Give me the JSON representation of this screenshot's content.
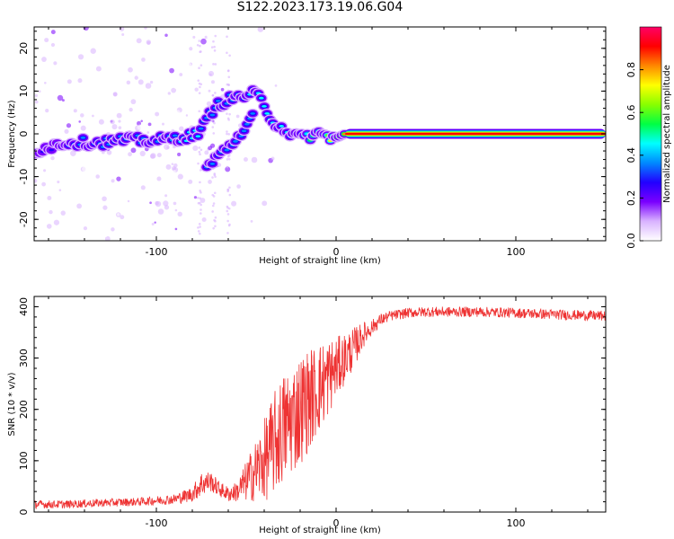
{
  "title": "S122.2023.173.19.06.G04",
  "chart_data": [
    {
      "type": "heatmap",
      "xlabel": "Height of straight line (km)",
      "ylabel": "Frequency (Hz)",
      "xlim": [
        -168,
        150
      ],
      "ylim": [
        -25,
        25
      ],
      "xticks": [
        -100,
        0,
        100
      ],
      "yticks": [
        -20,
        -10,
        0,
        10,
        20
      ],
      "colorbar": {
        "label": "Normalized spectral amplitude",
        "range": [
          0,
          1
        ],
        "ticks": [
          0.0,
          0.2,
          0.4,
          0.6,
          0.8
        ],
        "colors": [
          "#ffffff",
          "#d9b3ff",
          "#7a00ff",
          "#2200ff",
          "#0088ff",
          "#00ffff",
          "#00ff44",
          "#88ff00",
          "#ffff00",
          "#ff8800",
          "#ff0000",
          "#ff0066"
        ]
      },
      "ridge": {
        "name": "main ridge",
        "x": [
          -168,
          -160,
          -150,
          -140,
          -130,
          -120,
          -110,
          -100,
          -90,
          -80,
          -75,
          -72,
          -70,
          -65,
          -60,
          -55,
          -50,
          -45,
          -42,
          -40,
          -38,
          -35,
          -30,
          -25,
          -20,
          -15,
          -10,
          -5,
          0,
          5,
          10,
          50,
          100,
          150
        ],
        "y": [
          -4,
          -3,
          -2,
          -2,
          -2,
          -1.5,
          -1.5,
          -1.5,
          -1,
          -0.5,
          1,
          3,
          5,
          7,
          8,
          8.5,
          9,
          9.5,
          8,
          6,
          5,
          3,
          1.5,
          0,
          -1,
          -0.5,
          0,
          -0.5,
          -1,
          0,
          0,
          0,
          0,
          0
        ],
        "amplitude": [
          0.3,
          0.35,
          0.4,
          0.4,
          0.4,
          0.4,
          0.4,
          0.4,
          0.45,
          0.5,
          0.45,
          0.45,
          0.4,
          0.45,
          0.45,
          0.45,
          0.5,
          0.5,
          0.45,
          0.5,
          0.5,
          0.5,
          0.5,
          0.5,
          0.5,
          0.55,
          0.6,
          0.7,
          0.8,
          0.9,
          0.95,
          0.95,
          0.95,
          0.95
        ]
      },
      "secondary_ridge": {
        "name": "secondary ridge",
        "x": [
          -72,
          -65,
          -60,
          -55,
          -50,
          -45
        ],
        "y": [
          -8,
          -5,
          -3,
          -1,
          2,
          5
        ]
      }
    },
    {
      "type": "line",
      "xlabel": "Height of straight line (km)",
      "ylabel": "SNR (10 * v/v)",
      "xlim": [
        -168,
        150
      ],
      "ylim": [
        0,
        420
      ],
      "xticks": [
        -100,
        0,
        100
      ],
      "yticks": [
        0,
        100,
        200,
        300,
        400
      ],
      "color": "#ee3333",
      "series": [
        {
          "x": [
            -168,
            -150,
            -130,
            -110,
            -90,
            -80,
            -75,
            -70,
            -65,
            -60,
            -55,
            -50,
            -45,
            -40,
            -35,
            -30,
            -25,
            -20,
            -15,
            -10,
            -5,
            0,
            5,
            10,
            15,
            20,
            25,
            30,
            40,
            50,
            60,
            80,
            100,
            120,
            150
          ],
          "y": [
            15,
            15,
            18,
            20,
            25,
            35,
            55,
            60,
            45,
            35,
            40,
            60,
            80,
            100,
            130,
            160,
            180,
            200,
            220,
            240,
            260,
            280,
            300,
            320,
            345,
            360,
            375,
            382,
            388,
            390,
            390,
            390,
            388,
            385,
            382
          ],
          "noise": [
            8,
            8,
            8,
            8,
            10,
            15,
            25,
            20,
            15,
            15,
            20,
            40,
            60,
            80,
            100,
            110,
            110,
            110,
            100,
            90,
            80,
            60,
            50,
            40,
            25,
            15,
            12,
            10,
            10,
            10,
            10,
            10,
            10,
            10,
            10
          ]
        }
      ]
    }
  ]
}
